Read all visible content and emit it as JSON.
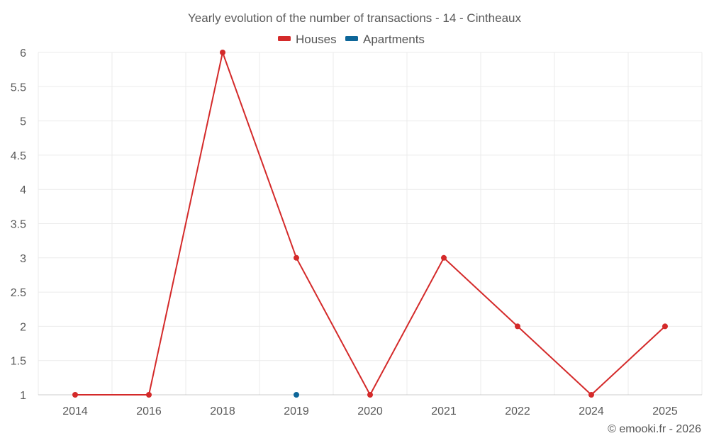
{
  "chart_data": {
    "type": "line",
    "title": "Yearly evolution of the number of transactions - 14 - Cintheaux",
    "categories": [
      "2014",
      "2016",
      "2018",
      "2019",
      "2020",
      "2021",
      "2022",
      "2024",
      "2025"
    ],
    "series": [
      {
        "name": "Houses",
        "color": "#d42a2a",
        "values": [
          1,
          1,
          6,
          3,
          1,
          3,
          2,
          1,
          2
        ]
      },
      {
        "name": "Apartments",
        "color": "#0d6699",
        "values": [
          null,
          null,
          null,
          1,
          null,
          null,
          null,
          null,
          null
        ]
      }
    ],
    "yticks": [
      "1",
      "1.5",
      "2",
      "2.5",
      "3",
      "3.5",
      "4",
      "4.5",
      "5",
      "5.5",
      "6"
    ],
    "ylim": [
      1,
      6
    ],
    "grid": true,
    "legend_position": "top-center",
    "xlabel": "",
    "ylabel": ""
  },
  "credit": "© emooki.fr - 2026"
}
